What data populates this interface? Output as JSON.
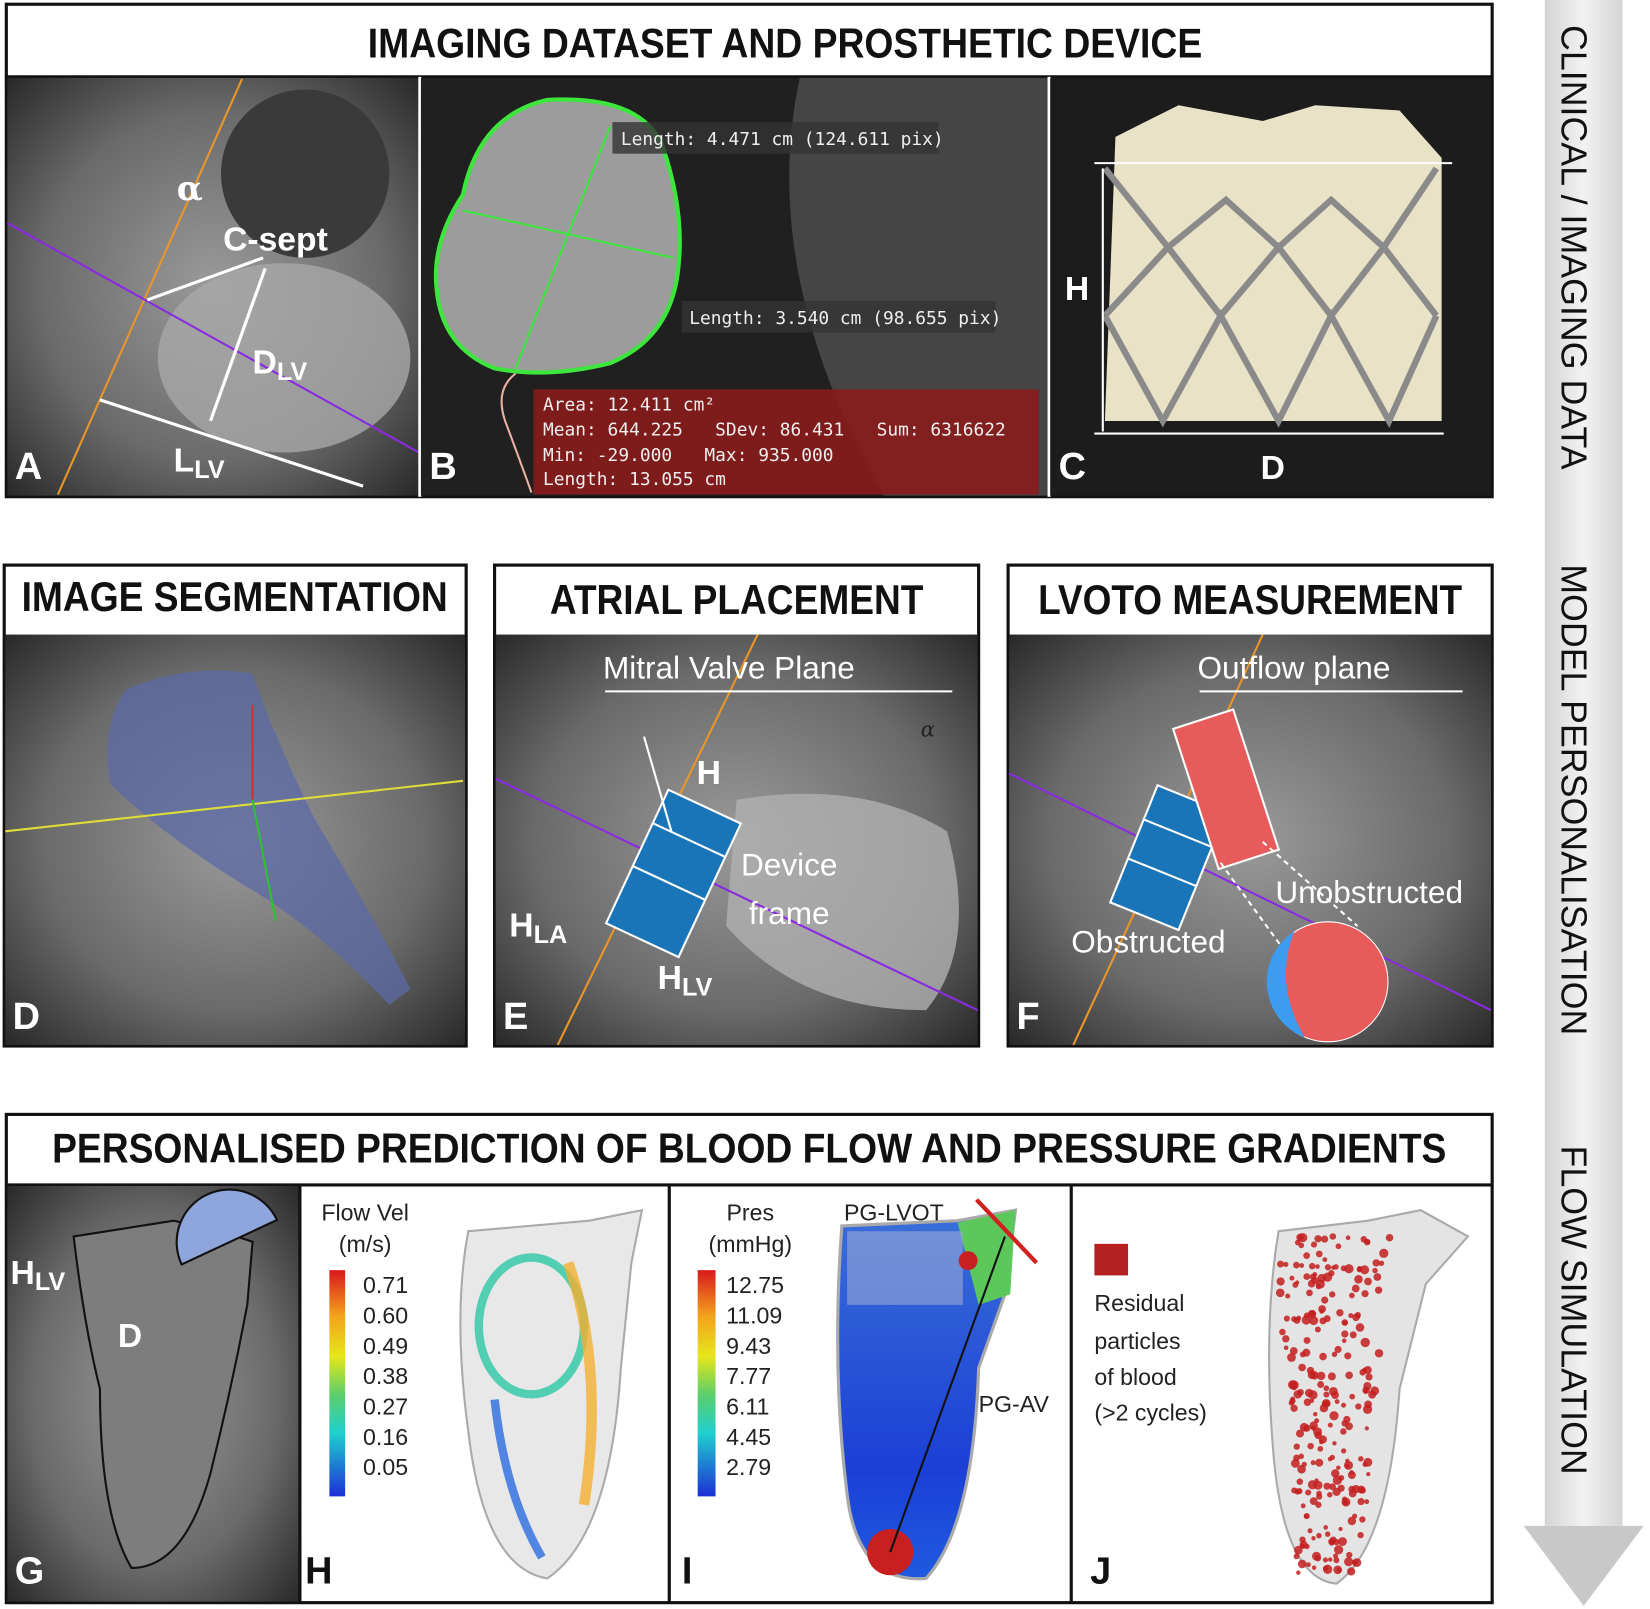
{
  "side_labels": [
    "CLINICAL / IMAGING DATA",
    "MODEL PERSONALISATION",
    "FLOW SIMULATION"
  ],
  "section1": {
    "title": "IMAGING DATASET AND PROSTHETIC DEVICE",
    "panel_a": {
      "letter": "A",
      "angle": "α",
      "c_sept": "C-sept",
      "d_lv": {
        "main": "D",
        "sub": "LV"
      },
      "l_lv": {
        "main": "L",
        "sub": "LV"
      }
    },
    "panel_b": {
      "letter": "B",
      "length_1": "Length: 4.471 cm (124.611 pix)",
      "length_2": "Length: 3.540 cm (98.655 pix)",
      "stats": [
        "Area: 12.411 cm²",
        "Mean: 644.225   SDev: 86.431   Sum: 6316622",
        "Min: -29.000   Max: 935.000",
        "Length: 13.055 cm"
      ]
    },
    "panel_c": {
      "letter": "C",
      "height": "H",
      "diameter": "D"
    }
  },
  "section2": {
    "panel_d": {
      "title": "IMAGE SEGMENTATION",
      "letter": "D"
    },
    "panel_e": {
      "title": "ATRIAL PLACEMENT",
      "letter": "E",
      "plane": "Mitral Valve Plane",
      "height": "H",
      "angle": "α",
      "device_frame": [
        "Device",
        "frame"
      ],
      "h_la": {
        "main": "H",
        "sub": "LA"
      },
      "h_lv": {
        "main": "H",
        "sub": "LV"
      }
    },
    "panel_f": {
      "title": "LVOTO MEASUREMENT",
      "letter": "F",
      "plane": "Outflow plane",
      "unobstructed": "Unobstructed",
      "obstructed": "Obstructed"
    }
  },
  "section3": {
    "title": "PERSONALISED PREDICTION OF BLOOD FLOW AND PRESSURE GRADIENTS",
    "panel_g": {
      "letter": "G",
      "h_lv": {
        "main": "H",
        "sub": "LV"
      },
      "diameter": "D"
    },
    "panel_h": {
      "letter": "H",
      "colorbar_title": [
        "Flow Vel",
        "(m/s)"
      ],
      "colorbar_ticks": [
        "0.71",
        "0.60",
        "0.49",
        "0.38",
        "0.27",
        "0.16",
        "0.05"
      ]
    },
    "panel_i": {
      "letter": "I",
      "colorbar_title": [
        "Pres",
        "(mmHg)"
      ],
      "colorbar_ticks": [
        "12.75",
        "11.09",
        "9.43",
        "7.77",
        "6.11",
        "4.45",
        "2.79"
      ],
      "pg_lvot": "PG-LVOT",
      "pg_av": "PG-AV"
    },
    "panel_j": {
      "letter": "J",
      "legend": [
        "Residual",
        "particles",
        "of blood",
        "(>2 cycles)"
      ]
    }
  }
}
